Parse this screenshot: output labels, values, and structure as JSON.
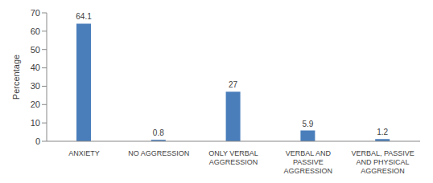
{
  "chart_data": {
    "type": "bar",
    "y_label": "Percentage",
    "categories": [
      "ANXIETY",
      "NO AGGRESSION",
      "ONLY VERBAL AGGRESSION",
      "VERBAL AND PASSIVE AGGRESSION",
      "VERBAL, PASSIVE AND PHYSICAL AGGRESION"
    ],
    "values": [
      64.1,
      0.8,
      27,
      5.9,
      1.2
    ],
    "color": "#4a7ebb",
    "ylim": [
      0,
      70
    ],
    "yticks": [
      0,
      10,
      20,
      30,
      40,
      50,
      60,
      70
    ],
    "grid": false,
    "data_labels": true
  }
}
